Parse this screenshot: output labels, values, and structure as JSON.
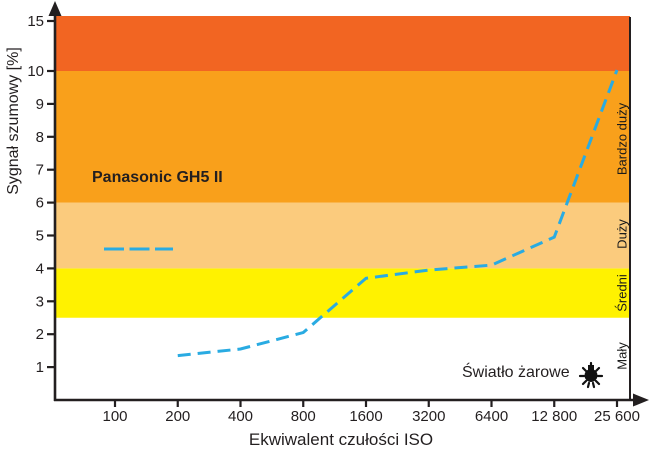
{
  "chart_data": {
    "type": "line",
    "xlabel": "Ekwiwalent czułości ISO",
    "ylabel": "Sygnał szumowy [%]",
    "categories": [
      "100",
      "200",
      "400",
      "800",
      "1600",
      "3200",
      "6400",
      "12 800",
      "25 600"
    ],
    "yticks": [
      1,
      2,
      3,
      4,
      5,
      6,
      7,
      8,
      9,
      10,
      15
    ],
    "ylim": [
      0,
      15.5
    ],
    "axis_color": "#231F20",
    "grid": false,
    "series": [
      {
        "name": "Panasonic GH5 II",
        "color": "#29ABE2",
        "style": "dashed",
        "values": [
          null,
          1.35,
          1.55,
          2.05,
          3.7,
          3.95,
          4.1,
          4.95,
          10.1
        ]
      }
    ],
    "bands": [
      {
        "label": "Mały",
        "from": 0,
        "to": 2.5,
        "color": "#FFFFFF"
      },
      {
        "label": "Średni",
        "from": 2.5,
        "to": 4,
        "color": "#FFF200"
      },
      {
        "label": "Duży",
        "from": 4,
        "to": 6,
        "color": "#FBCB7D"
      },
      {
        "label": "Bardzo duży",
        "from": 6,
        "to": 10,
        "color": "#F9A01B"
      },
      {
        "label": "",
        "from": 10,
        "to": 15.5,
        "color": "#F26522"
      }
    ],
    "legend": {
      "label": "Panasonic GH5 II",
      "position": "top-left-inside"
    },
    "annotation": {
      "text": "Światło żarowe",
      "icon": "incandescent-bulb-icon"
    }
  }
}
